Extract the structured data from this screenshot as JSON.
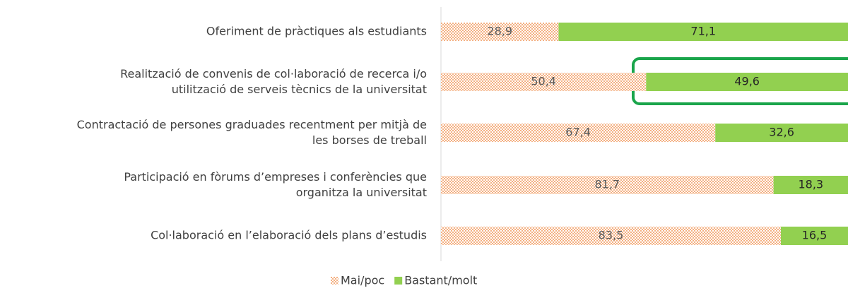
{
  "chart_data": {
    "type": "stacked-barh",
    "categories": [
      "Oferiment de pràctiques als estudiants",
      "Realització de convenis de col·laboració de recerca i/o\nutilització de serveis tècnics de la universitat",
      "Contractació de persones graduades recentment per mitjà de\nles borses de treball",
      "Participació en fòrums d’empreses i conferències que\norganitza la universitat",
      "Col·laboració en l’elaboració dels plans d’estudis"
    ],
    "series": [
      {
        "name": "Mai/poc",
        "color": "#f4b183",
        "values": [
          28.9,
          50.4,
          67.4,
          81.7,
          83.5
        ],
        "value_labels": [
          "28,9",
          "50,4",
          "67,4",
          "81,7",
          "83,5"
        ]
      },
      {
        "name": "Bastant/molt",
        "color": "#92d050",
        "values": [
          71.1,
          49.6,
          32.6,
          18.3,
          16.5
        ],
        "value_labels": [
          "71,1",
          "49,6",
          "32,6",
          "18,3",
          "16,5"
        ]
      }
    ],
    "xlim": [
      0,
      100
    ],
    "legend": "bottom"
  }
}
